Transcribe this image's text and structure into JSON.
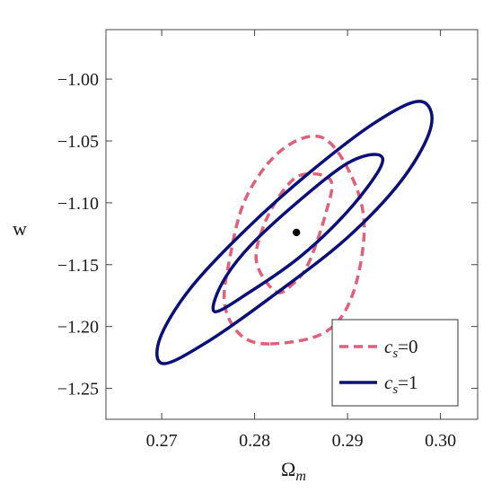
{
  "chart_data": {
    "type": "contour",
    "xlabel_symbol": "Ω",
    "xlabel_sub": "m",
    "ylabel": "w",
    "xlim": [
      0.264,
      0.304
    ],
    "ylim": [
      -1.275,
      -0.96
    ],
    "xticks": [
      {
        "value": 0.27,
        "label": "0.27"
      },
      {
        "value": 0.28,
        "label": "0.28"
      },
      {
        "value": 0.29,
        "label": "0.29"
      },
      {
        "value": 0.3,
        "label": "0.30"
      }
    ],
    "yticks": [
      {
        "value": -1.0,
        "label": "−1.00"
      },
      {
        "value": -1.05,
        "label": "−1.05"
      },
      {
        "value": -1.1,
        "label": "−1.10"
      },
      {
        "value": -1.15,
        "label": "−1.15"
      },
      {
        "value": -1.2,
        "label": "−1.20"
      },
      {
        "value": -1.25,
        "label": "−1.25"
      }
    ],
    "fiducial_point": {
      "x": 0.2845,
      "y": -1.124
    },
    "series": [
      {
        "legend_symbol": "c",
        "legend_sub": "s",
        "legend_value": "=0",
        "color": "#e0607a",
        "dash": true,
        "contours": [
          {
            "level": "inner",
            "x": [
              0.2823,
              0.2842,
              0.2858,
              0.2876,
              0.2882,
              0.2853,
              0.2832,
              0.281,
              0.2802
            ],
            "y": [
              -1.172,
              -1.165,
              -1.149,
              -1.11,
              -1.082,
              -1.077,
              -1.089,
              -1.118,
              -1.148
            ]
          },
          {
            "level": "outer",
            "x": [
              0.2817,
              0.2875,
              0.2905,
              0.2918,
              0.2904,
              0.2872,
              0.2828,
              0.279,
              0.2772,
              0.2768,
              0.2785
            ],
            "y": [
              -1.214,
              -1.205,
              -1.175,
              -1.12,
              -1.078,
              -1.047,
              -1.058,
              -1.097,
              -1.15,
              -1.183,
              -1.207
            ]
          }
        ]
      },
      {
        "legend_symbol": "c",
        "legend_sub": "s",
        "legend_value": "=1",
        "color": "#0b0f7a",
        "dash": false,
        "contours": [
          {
            "level": "inner",
            "x": [
              0.2757,
              0.2795,
              0.285,
              0.29,
              0.2935,
              0.2932,
              0.29,
              0.285,
              0.2795,
              0.2765
            ],
            "y": [
              -1.188,
              -1.172,
              -1.143,
              -1.107,
              -1.072,
              -1.061,
              -1.068,
              -1.097,
              -1.135,
              -1.165
            ]
          },
          {
            "level": "outer",
            "x": [
              0.2702,
              0.275,
              0.282,
              0.29,
              0.296,
              0.299,
              0.2978,
              0.293,
              0.286,
              0.279,
              0.273,
              0.2698
            ],
            "y": [
              -1.23,
              -1.212,
              -1.175,
              -1.128,
              -1.08,
              -1.038,
              -1.018,
              -1.035,
              -1.075,
              -1.122,
              -1.17,
              -1.21
            ]
          }
        ]
      }
    ]
  }
}
